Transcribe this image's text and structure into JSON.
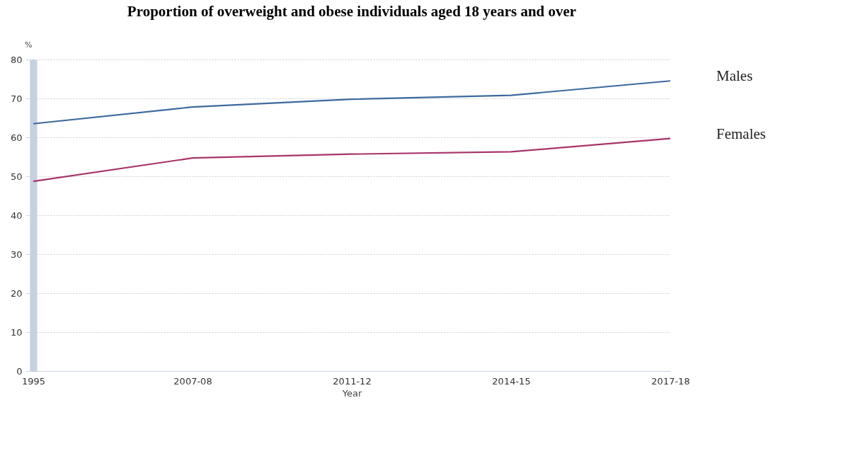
{
  "chart_data": {
    "type": "line",
    "title": "Proportion of overweight and obese individuals aged 18 years and over",
    "xlabel": "Year",
    "ylabel": "%",
    "categories": [
      "1995",
      "2007-08",
      "2011-12",
      "2014-15",
      "2017-18"
    ],
    "series": [
      {
        "name": "Males",
        "color": "#3d6a9e",
        "values": [
          63.5,
          67.8,
          69.8,
          70.8,
          74.5
        ]
      },
      {
        "name": "Females",
        "color": "#a8346a",
        "values": [
          48.7,
          54.7,
          55.7,
          56.3,
          59.7
        ]
      }
    ],
    "ylim": [
      0,
      80
    ],
    "yticks": [
      0,
      10,
      20,
      30,
      40,
      50,
      60,
      70,
      80
    ],
    "grid": "y",
    "legend": false
  }
}
